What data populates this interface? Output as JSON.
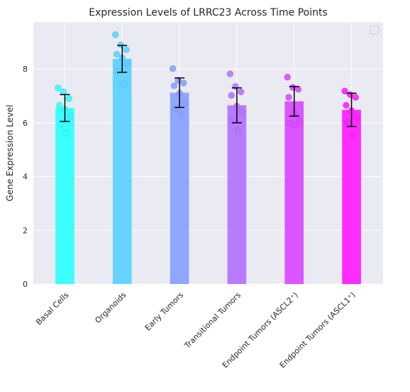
{
  "chart_data": {
    "type": "bar",
    "title": "Expression Levels of LRRC23 Across Time Points",
    "xlabel": "",
    "ylabel": "Gene Expression Level",
    "ylim": [
      0,
      9.75
    ],
    "yticks": [
      0,
      2,
      4,
      6,
      8
    ],
    "grid": true,
    "legend": "top-right, empty",
    "categories": [
      "Basal Cells",
      "Organoids",
      "Early Tumors",
      "Transitional Tumors",
      "Endpoint Tumors (ASCL2⁺)",
      "Endpoint Tumors (ASCL1⁺)"
    ],
    "values": [
      6.55,
      8.38,
      7.12,
      6.65,
      6.8,
      6.48
    ],
    "errors": [
      0.5,
      0.5,
      0.55,
      0.65,
      0.55,
      0.62
    ],
    "colors": [
      "#33ffff",
      "#5fd2ff",
      "#8aa3ff",
      "#b475ff",
      "#da4cff",
      "#ff22ff"
    ],
    "points": [
      [
        7.3,
        7.15,
        6.9,
        6.65,
        6.5,
        6.25,
        5.95,
        5.62
      ],
      [
        9.28,
        8.9,
        8.72,
        8.55,
        8.42,
        8.2,
        7.92,
        7.45
      ],
      [
        8.02,
        7.58,
        7.48,
        7.38,
        7.1,
        6.75,
        6.52,
        6.3
      ],
      [
        7.82,
        7.35,
        7.15,
        7.02,
        6.62,
        6.38,
        6.1,
        5.7
      ],
      [
        7.7,
        7.32,
        7.25,
        6.95,
        6.35,
        6.05,
        5.98,
        5.9
      ],
      [
        7.18,
        7.05,
        6.95,
        6.65,
        6.45,
        6.22,
        6.0,
        5.55
      ]
    ]
  }
}
